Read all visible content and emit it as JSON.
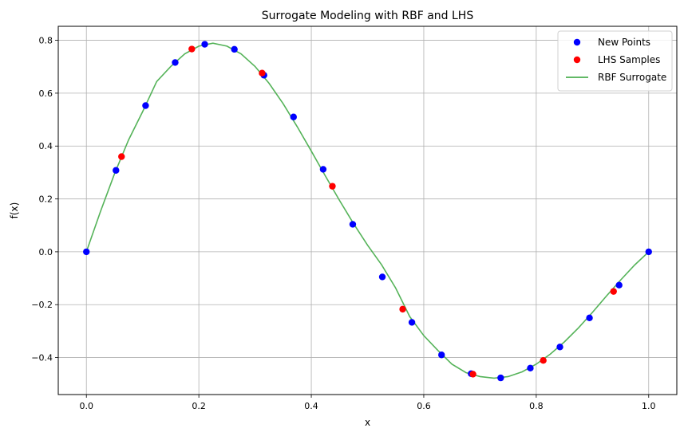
{
  "chart_data": {
    "type": "scatter",
    "title": "Surrogate Modeling with RBF and LHS",
    "xlabel": "x",
    "ylabel": "f(x)",
    "xlim": [
      -0.05,
      1.05
    ],
    "ylim": [
      -0.54,
      0.853
    ],
    "xticks": [
      0.0,
      0.2,
      0.4,
      0.6,
      0.8,
      1.0
    ],
    "xtick_labels": [
      "0.0",
      "0.2",
      "0.4",
      "0.6",
      "0.8",
      "1.0"
    ],
    "yticks": [
      -0.4,
      -0.2,
      0.0,
      0.2,
      0.4,
      0.6,
      0.8
    ],
    "ytick_labels": [
      "−0.4",
      "−0.2",
      "0.0",
      "0.2",
      "0.4",
      "0.6",
      "0.8"
    ],
    "grid": true,
    "legend_position": "top-right",
    "series": [
      {
        "name": "New Points",
        "kind": "points",
        "color": "#0000ff",
        "x": [
          0.0,
          0.0526,
          0.1053,
          0.1579,
          0.2105,
          0.2632,
          0.3158,
          0.3684,
          0.4211,
          0.4737,
          0.5263,
          0.5789,
          0.6316,
          0.6842,
          0.7368,
          0.7895,
          0.8421,
          0.8947,
          0.9474,
          1.0
        ],
        "y": [
          0.0,
          0.308,
          0.553,
          0.716,
          0.785,
          0.766,
          0.668,
          0.51,
          0.312,
          0.104,
          -0.095,
          -0.267,
          -0.39,
          -0.461,
          -0.477,
          -0.44,
          -0.36,
          -0.25,
          -0.126,
          0.0
        ]
      },
      {
        "name": "LHS Samples",
        "kind": "points",
        "color": "#ff0000",
        "x": [
          0.0625,
          0.1875,
          0.3125,
          0.4375,
          0.5625,
          0.6875,
          0.8125,
          0.9375
        ],
        "y": [
          0.36,
          0.767,
          0.676,
          0.248,
          -0.217,
          -0.463,
          -0.411,
          -0.15
        ]
      },
      {
        "name": "RBF Surrogate",
        "kind": "line",
        "color": "#4caf50",
        "x": [
          0.0,
          0.025,
          0.05,
          0.075,
          0.1,
          0.125,
          0.15,
          0.175,
          0.2,
          0.225,
          0.25,
          0.275,
          0.3,
          0.325,
          0.35,
          0.375,
          0.4,
          0.425,
          0.45,
          0.475,
          0.5,
          0.525,
          0.55,
          0.575,
          0.6,
          0.625,
          0.65,
          0.675,
          0.7,
          0.725,
          0.75,
          0.775,
          0.8,
          0.825,
          0.85,
          0.875,
          0.9,
          0.925,
          0.95,
          0.975,
          1.0
        ],
        "y": [
          0.0,
          0.152,
          0.295,
          0.423,
          0.53,
          0.644,
          0.701,
          0.749,
          0.778,
          0.789,
          0.778,
          0.749,
          0.701,
          0.637,
          0.56,
          0.473,
          0.381,
          0.287,
          0.195,
          0.107,
          0.025,
          -0.049,
          -0.137,
          -0.245,
          -0.317,
          -0.373,
          -0.425,
          -0.457,
          -0.472,
          -0.478,
          -0.472,
          -0.454,
          -0.425,
          -0.387,
          -0.341,
          -0.288,
          -0.229,
          -0.167,
          -0.107,
          -0.05,
          0.0
        ]
      }
    ]
  }
}
